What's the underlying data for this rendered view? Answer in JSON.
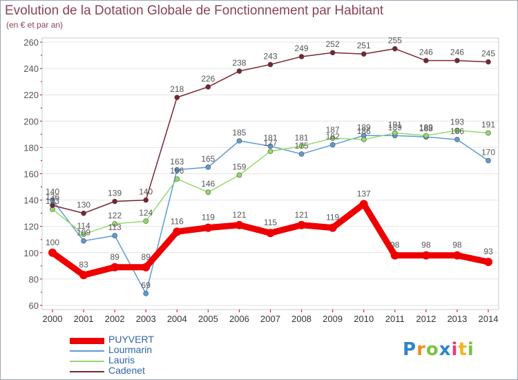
{
  "header": {
    "title": "Evolution de la Dotation Globale de Fonctionnement par Habitant",
    "subtitle": "(en € et par an)"
  },
  "chart_data": {
    "type": "line",
    "title": "Evolution de la Dotation Globale de Fonctionnement par Habitant",
    "subtitle": "(en € et par an)",
    "xlabel": "",
    "ylabel": "",
    "x": [
      2000,
      2001,
      2002,
      2003,
      2004,
      2005,
      2006,
      2007,
      2008,
      2009,
      2010,
      2011,
      2012,
      2013,
      2014
    ],
    "ylim": [
      60,
      260
    ],
    "yticks": [
      60,
      80,
      100,
      120,
      140,
      160,
      180,
      200,
      220,
      240,
      260
    ],
    "grid": "horizontal",
    "legend": "bottom-left",
    "series": [
      {
        "name": "PUYVERT",
        "color": "#ee0000",
        "values": [
          100,
          83,
          89,
          89,
          116,
          119,
          121,
          115,
          121,
          119,
          137,
          98,
          98,
          98,
          93
        ]
      },
      {
        "name": "Lourmarin",
        "color": "#5c9bd6",
        "values": [
          140,
          109,
          113,
          69,
          163,
          165,
          185,
          181,
          175,
          182,
          189,
          189,
          188,
          186,
          170
        ]
      },
      {
        "name": "Lauris",
        "color": "#93d96b",
        "values": [
          133,
          114,
          122,
          124,
          156,
          146,
          159,
          177,
          181,
          187,
          186,
          191,
          189,
          193,
          191
        ]
      },
      {
        "name": "Cadenet",
        "color": "#7a2430",
        "values": [
          136,
          130,
          139,
          140,
          218,
          226,
          238,
          243,
          249,
          252,
          251,
          255,
          246,
          246,
          245
        ]
      }
    ]
  },
  "brand": {
    "letters": [
      "P",
      "r",
      "o",
      "x",
      "i",
      "t",
      "i"
    ],
    "colors": [
      "#2d86c8",
      "#f28c1e",
      "#7cc242",
      "#2d86c8",
      "#e63b7a",
      "#f2b61e",
      "#7cc242"
    ]
  }
}
